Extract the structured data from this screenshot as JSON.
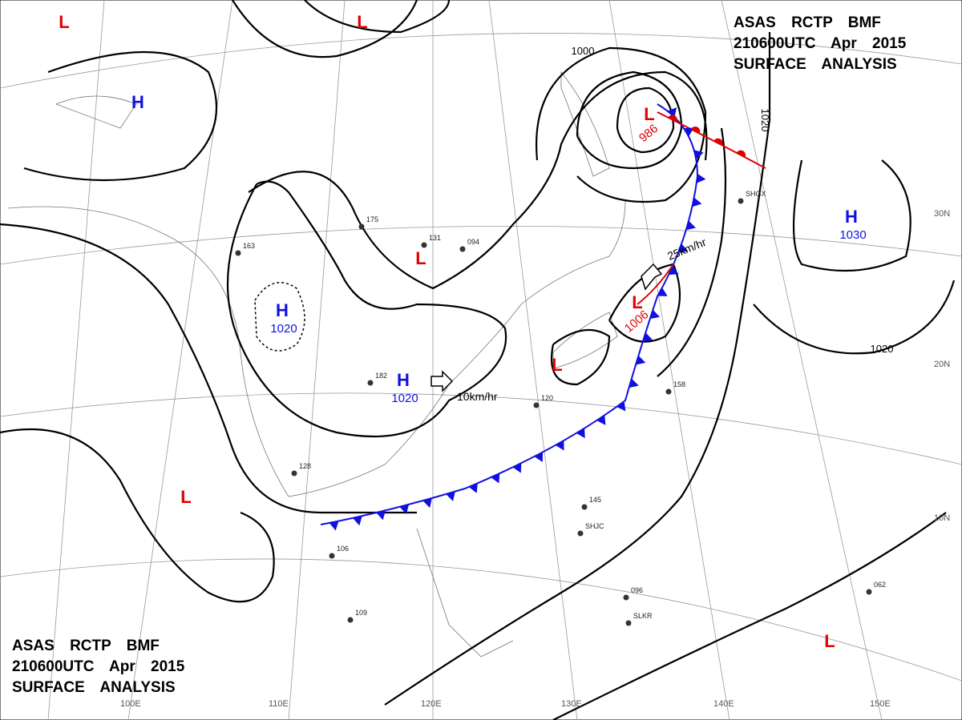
{
  "header": {
    "lines": [
      "ASAS RCTP BMF",
      "210600UTC Apr 2015",
      "SURFACE ANALYSIS"
    ]
  },
  "pressure_centers": [
    {
      "type": "L"
    },
    {
      "type": "L"
    },
    {
      "type": "H"
    },
    {
      "type": "L"
    },
    {
      "type": "H",
      "value": 1020
    },
    {
      "type": "H",
      "value": 1020
    },
    {
      "type": "L"
    },
    {
      "type": "L",
      "value": 986
    },
    {
      "type": "L",
      "value": 1006
    },
    {
      "type": "H",
      "value": 1030
    },
    {
      "type": "L"
    },
    {
      "type": "L"
    }
  ],
  "isobar_labels": [
    1000,
    1020,
    1020
  ],
  "motions": [
    "25km/hr",
    "10km/hr"
  ],
  "longitudes": [
    "100E",
    "110E",
    "120E",
    "130E",
    "140E",
    "150E"
  ],
  "latitudes": [
    "30N",
    "20N",
    "10N"
  ],
  "stations": [
    "SHJC",
    "SLKR",
    "SHGX",
    "131",
    "094",
    "175",
    "163",
    "182",
    "120",
    "145",
    "096",
    "062",
    "158",
    "109",
    "106",
    "128"
  ]
}
